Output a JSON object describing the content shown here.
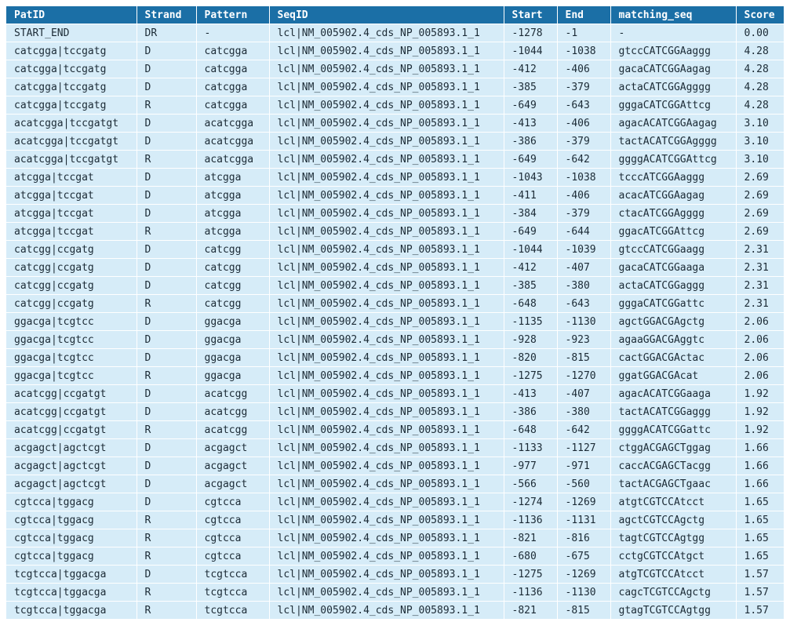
{
  "columns": [
    "PatID",
    "Strand",
    "Pattern",
    "SeqID",
    "Start",
    "End",
    "matching_seq",
    "Score"
  ],
  "rows": [
    [
      "START_END",
      "DR",
      "-",
      "lcl|NM_005902.4_cds_NP_005893.1_1",
      "-1278",
      "-1",
      "-",
      "0.00"
    ],
    [
      "catcgga|tccgatg",
      "D",
      "catcgga",
      "lcl|NM_005902.4_cds_NP_005893.1_1",
      "-1044",
      "-1038",
      "gtccCATCGGAaggg",
      "4.28"
    ],
    [
      "catcgga|tccgatg",
      "D",
      "catcgga",
      "lcl|NM_005902.4_cds_NP_005893.1_1",
      "-412",
      "-406",
      "gacaCATCGGAagag",
      "4.28"
    ],
    [
      "catcgga|tccgatg",
      "D",
      "catcgga",
      "lcl|NM_005902.4_cds_NP_005893.1_1",
      "-385",
      "-379",
      "actaCATCGGAgggg",
      "4.28"
    ],
    [
      "catcgga|tccgatg",
      "R",
      "catcgga",
      "lcl|NM_005902.4_cds_NP_005893.1_1",
      "-649",
      "-643",
      "gggaCATCGGAttcg",
      "4.28"
    ],
    [
      "acatcgga|tccgatgt",
      "D",
      "acatcgga",
      "lcl|NM_005902.4_cds_NP_005893.1_1",
      "-413",
      "-406",
      "agacACATCGGAagag",
      "3.10"
    ],
    [
      "acatcgga|tccgatgt",
      "D",
      "acatcgga",
      "lcl|NM_005902.4_cds_NP_005893.1_1",
      "-386",
      "-379",
      "tactACATCGGAgggg",
      "3.10"
    ],
    [
      "acatcgga|tccgatgt",
      "R",
      "acatcgga",
      "lcl|NM_005902.4_cds_NP_005893.1_1",
      "-649",
      "-642",
      "ggggACATCGGAttcg",
      "3.10"
    ],
    [
      "atcgga|tccgat",
      "D",
      "atcgga",
      "lcl|NM_005902.4_cds_NP_005893.1_1",
      "-1043",
      "-1038",
      "tcccATCGGAaggg",
      "2.69"
    ],
    [
      "atcgga|tccgat",
      "D",
      "atcgga",
      "lcl|NM_005902.4_cds_NP_005893.1_1",
      "-411",
      "-406",
      "acacATCGGAagag",
      "2.69"
    ],
    [
      "atcgga|tccgat",
      "D",
      "atcgga",
      "lcl|NM_005902.4_cds_NP_005893.1_1",
      "-384",
      "-379",
      "ctacATCGGAgggg",
      "2.69"
    ],
    [
      "atcgga|tccgat",
      "R",
      "atcgga",
      "lcl|NM_005902.4_cds_NP_005893.1_1",
      "-649",
      "-644",
      "ggacATCGGAttcg",
      "2.69"
    ],
    [
      "catcgg|ccgatg",
      "D",
      "catcgg",
      "lcl|NM_005902.4_cds_NP_005893.1_1",
      "-1044",
      "-1039",
      "gtccCATCGGaagg",
      "2.31"
    ],
    [
      "catcgg|ccgatg",
      "D",
      "catcgg",
      "lcl|NM_005902.4_cds_NP_005893.1_1",
      "-412",
      "-407",
      "gacaCATCGGaaga",
      "2.31"
    ],
    [
      "catcgg|ccgatg",
      "D",
      "catcgg",
      "lcl|NM_005902.4_cds_NP_005893.1_1",
      "-385",
      "-380",
      "actaCATCGGaggg",
      "2.31"
    ],
    [
      "catcgg|ccgatg",
      "R",
      "catcgg",
      "lcl|NM_005902.4_cds_NP_005893.1_1",
      "-648",
      "-643",
      "gggaCATCGGattc",
      "2.31"
    ],
    [
      "ggacga|tcgtcc",
      "D",
      "ggacga",
      "lcl|NM_005902.4_cds_NP_005893.1_1",
      "-1135",
      "-1130",
      "agctGGACGAgctg",
      "2.06"
    ],
    [
      "ggacga|tcgtcc",
      "D",
      "ggacga",
      "lcl|NM_005902.4_cds_NP_005893.1_1",
      "-928",
      "-923",
      "agaaGGACGAggtc",
      "2.06"
    ],
    [
      "ggacga|tcgtcc",
      "D",
      "ggacga",
      "lcl|NM_005902.4_cds_NP_005893.1_1",
      "-820",
      "-815",
      "cactGGACGActac",
      "2.06"
    ],
    [
      "ggacga|tcgtcc",
      "R",
      "ggacga",
      "lcl|NM_005902.4_cds_NP_005893.1_1",
      "-1275",
      "-1270",
      "ggatGGACGAcat",
      "2.06"
    ],
    [
      "acatcgg|ccgatgt",
      "D",
      "acatcgg",
      "lcl|NM_005902.4_cds_NP_005893.1_1",
      "-413",
      "-407",
      "agacACATCGGaaga",
      "1.92"
    ],
    [
      "acatcgg|ccgatgt",
      "D",
      "acatcgg",
      "lcl|NM_005902.4_cds_NP_005893.1_1",
      "-386",
      "-380",
      "tactACATCGGaggg",
      "1.92"
    ],
    [
      "acatcgg|ccgatgt",
      "R",
      "acatcgg",
      "lcl|NM_005902.4_cds_NP_005893.1_1",
      "-648",
      "-642",
      "ggggACATCGGattc",
      "1.92"
    ],
    [
      "acgagct|agctcgt",
      "D",
      "acgagct",
      "lcl|NM_005902.4_cds_NP_005893.1_1",
      "-1133",
      "-1127",
      "ctggACGAGCTggag",
      "1.66"
    ],
    [
      "acgagct|agctcgt",
      "D",
      "acgagct",
      "lcl|NM_005902.4_cds_NP_005893.1_1",
      "-977",
      "-971",
      "caccACGAGCTacgg",
      "1.66"
    ],
    [
      "acgagct|agctcgt",
      "D",
      "acgagct",
      "lcl|NM_005902.4_cds_NP_005893.1_1",
      "-566",
      "-560",
      "tactACGAGCTgaac",
      "1.66"
    ],
    [
      "cgtcca|tggacg",
      "D",
      "cgtcca",
      "lcl|NM_005902.4_cds_NP_005893.1_1",
      "-1274",
      "-1269",
      "atgtCGTCCAtcct",
      "1.65"
    ],
    [
      "cgtcca|tggacg",
      "R",
      "cgtcca",
      "lcl|NM_005902.4_cds_NP_005893.1_1",
      "-1136",
      "-1131",
      "agctCGTCCAgctg",
      "1.65"
    ],
    [
      "cgtcca|tggacg",
      "R",
      "cgtcca",
      "lcl|NM_005902.4_cds_NP_005893.1_1",
      "-821",
      "-816",
      "tagtCGTCCAgtgg",
      "1.65"
    ],
    [
      "cgtcca|tggacg",
      "R",
      "cgtcca",
      "lcl|NM_005902.4_cds_NP_005893.1_1",
      "-680",
      "-675",
      "cctgCGTCCAtgct",
      "1.65"
    ],
    [
      "tcgtcca|tggacga",
      "D",
      "tcgtcca",
      "lcl|NM_005902.4_cds_NP_005893.1_1",
      "-1275",
      "-1269",
      "atgTCGTCCAtcct",
      "1.57"
    ],
    [
      "tcgtcca|tggacga",
      "R",
      "tcgtcca",
      "lcl|NM_005902.4_cds_NP_005893.1_1",
      "-1136",
      "-1130",
      "cagcTCGTCCAgctg",
      "1.57"
    ],
    [
      "tcgtcca|tggacga",
      "R",
      "tcgtcca",
      "lcl|NM_005902.4_cds_NP_005893.1_1",
      "-821",
      "-815",
      "gtagTCGTCCAgtgg",
      "1.57"
    ]
  ]
}
